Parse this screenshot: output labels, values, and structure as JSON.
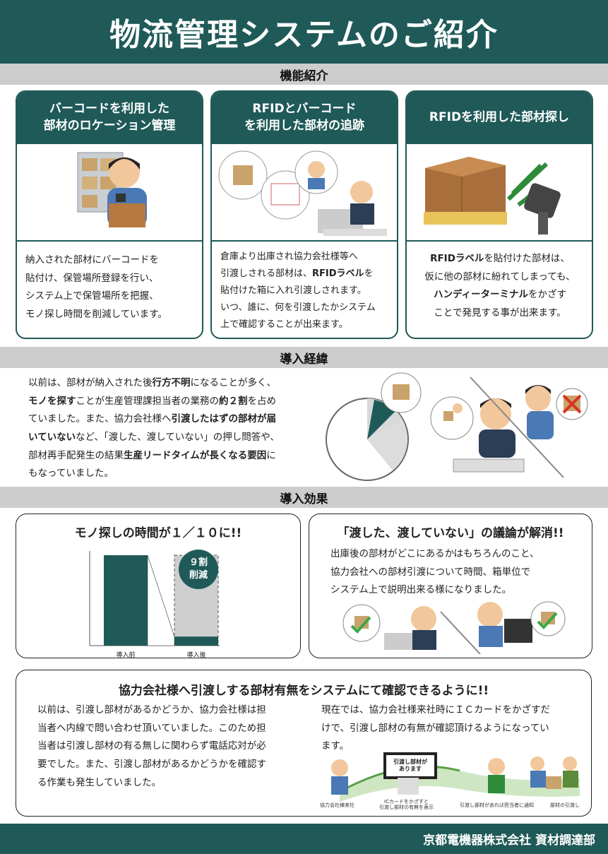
{
  "title": "物流管理システムのご紹介",
  "sections": {
    "features": "機能紹介",
    "history": "導入経緯",
    "effects": "導入効果"
  },
  "features": [
    {
      "title_lines": [
        "バーコードを利用した",
        "部材のロケーション管理"
      ],
      "body": [
        "納入された部材にバーコードを",
        "貼付け、保管場所登録を行い、",
        "システム上で保管場所を把握、",
        "モノ探し時間を削減しています。"
      ]
    },
    {
      "title_lines": [
        "RFIDとバーコード",
        "を利用した部材の追跡"
      ],
      "body_rich": [
        [
          "倉庫より出庫され協力会社様等へ"
        ],
        [
          "引渡しされる部材は、",
          "RFIDラベル",
          "を"
        ],
        [
          "貼付けた箱に入れ引渡しされます。"
        ],
        [
          "いつ、誰に、何を引渡したかシステム"
        ],
        [
          "上で確認することが出来ます。"
        ]
      ]
    },
    {
      "title_lines": [
        "RFIDを利用した部材探し"
      ],
      "body_rich": [
        [
          "",
          "RFIDラベル",
          "を貼付けた部材は、"
        ],
        [
          "仮に他の部材に紛れてしまっても、"
        ],
        [
          "",
          "ハンディーターミナル",
          "をかざす"
        ],
        [
          "ことで発見する事が出来ます。"
        ]
      ]
    }
  ],
  "history": {
    "lines": [
      [
        "以前は、部材が納入された後",
        "行方不明",
        "になることが多く、"
      ],
      [
        "",
        "モノを探す",
        "ことが生産管理課担当者の業務の",
        "約２割",
        "を占め"
      ],
      [
        "ていました。また、協力会社様へ",
        "引渡したはずの部材が届",
        ""
      ],
      [
        "",
        "いていない",
        "など、「渡した、渡していない」の押し問答や、"
      ],
      [
        "部材再手配発生の結果",
        "生産リードタイムが長くなる要因",
        "に"
      ],
      [
        "もなっていました。"
      ]
    ]
  },
  "effects": {
    "time": {
      "title": "モノ探しの時間が１／１０に!!",
      "badge_lines": [
        "９割",
        "削減"
      ],
      "before_label": "導入前",
      "after_label": "導入後"
    },
    "dispute": {
      "title": "「渡した、渡していない」の議論が解消!!",
      "lines": [
        "出庫後の部材がどこにあるかはもちろんのこと、",
        "協力会社への部材引渡について時間、箱単位で",
        "システム上で説明出来る様になりました。"
      ]
    },
    "confirm": {
      "title": "協力会社様へ引渡しする部材有無をシステムにて確認できるように!!",
      "before_lines": [
        "以前は、引渡し部材があるかどうか、協力会社様は担",
        "当者へ内線で問い合わせ頂いていました。このため担",
        "当者は引渡し部材の有る無しに関わらず電話応対が必",
        "要でした。また、引渡し部材があるかどうかを確認す",
        "る作業も発生していました。"
      ],
      "after_lines": [
        "現在では、協力会社様来社時にＩＣカードをかざすだ",
        "けで、引渡し部材の有無が確認頂けるようになってい",
        "ます。"
      ],
      "screen_lines": [
        "引渡し部材が",
        "あります"
      ],
      "captions": [
        "協力会社様来社",
        "ICカードをかざすと",
        "引渡し部材の有無を表示",
        "引渡し部材があれば担当者に通知",
        "部材の引渡し"
      ]
    }
  },
  "chart_data": {
    "type": "bar",
    "categories": [
      "導入前",
      "導入後"
    ],
    "values": [
      100,
      10
    ],
    "title": "モノ探しの時間が１／１０に!!",
    "xlabel": "",
    "ylabel": ""
  },
  "footer": "京都電機器株式会社 資材調達部",
  "colors": {
    "brand": "#1f5a58",
    "band": "#cdcdcd"
  }
}
